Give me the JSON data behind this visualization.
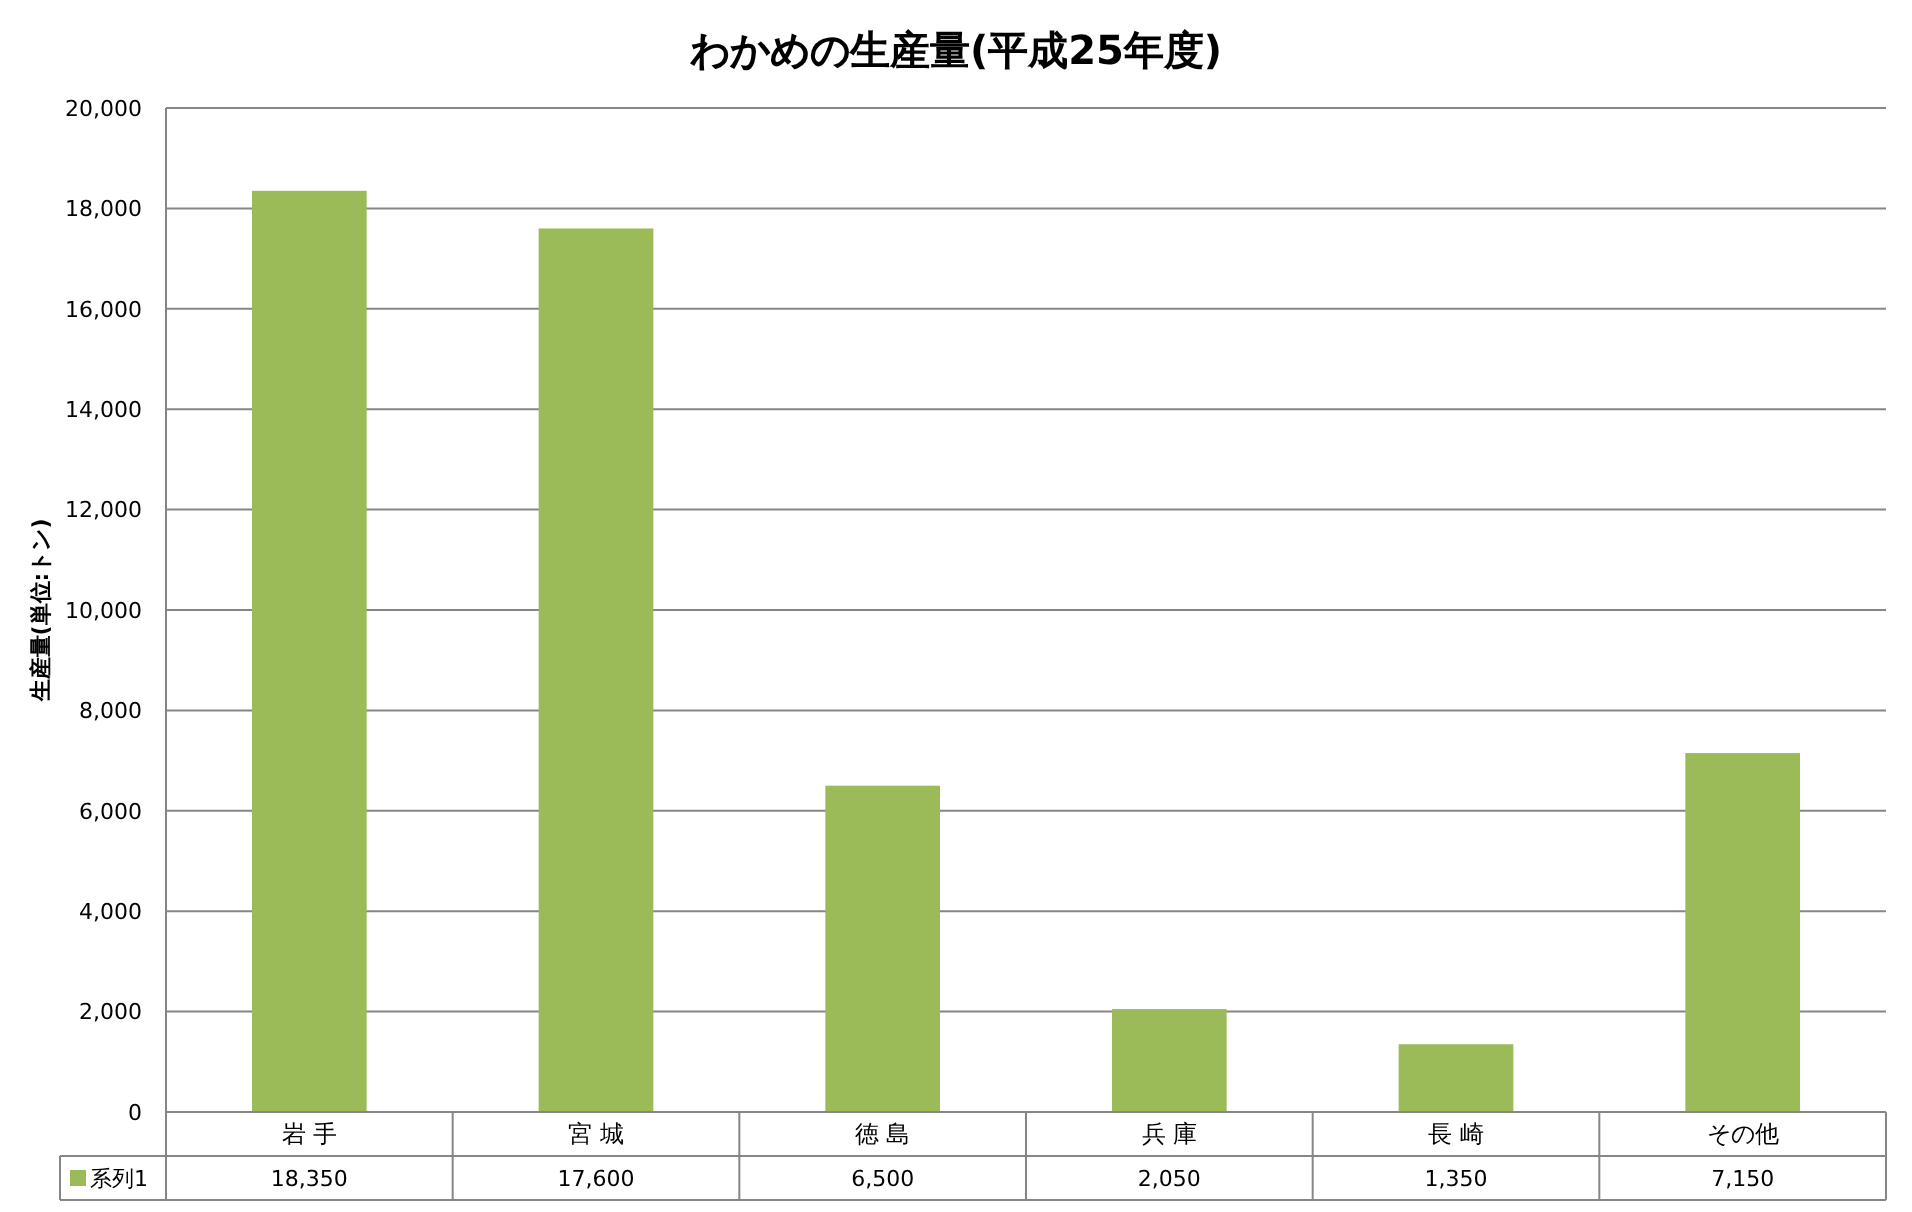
{
  "chart_data": {
    "type": "bar",
    "title": "わかめの生産量(平成25年度)",
    "ylabel": "生産量(単位:トン)",
    "categories": [
      "岩 手",
      "宮 城",
      "徳 島",
      "兵 庫",
      "長 崎",
      "その他"
    ],
    "series": [
      {
        "name": "系列1",
        "color": "#9bbb59",
        "values": [
          18350,
          17600,
          6500,
          2050,
          1350,
          7150
        ],
        "value_labels": [
          "18,350",
          "17,600",
          "6,500",
          "2,050",
          "1,350",
          "7,150"
        ]
      }
    ],
    "ylim": [
      0,
      20000
    ],
    "yticks": [
      {
        "value": 0,
        "label": "0"
      },
      {
        "value": 2000,
        "label": "2,000"
      },
      {
        "value": 4000,
        "label": "4,000"
      },
      {
        "value": 6000,
        "label": "6,000"
      },
      {
        "value": 8000,
        "label": "8,000"
      },
      {
        "value": 10000,
        "label": "10,000"
      },
      {
        "value": 12000,
        "label": "12,000"
      },
      {
        "value": 14000,
        "label": "14,000"
      },
      {
        "value": 16000,
        "label": "16,000"
      },
      {
        "value": 18000,
        "label": "18,000"
      },
      {
        "value": 20000,
        "label": "20,000"
      }
    ],
    "grid": "y",
    "legend": "bottom left"
  }
}
